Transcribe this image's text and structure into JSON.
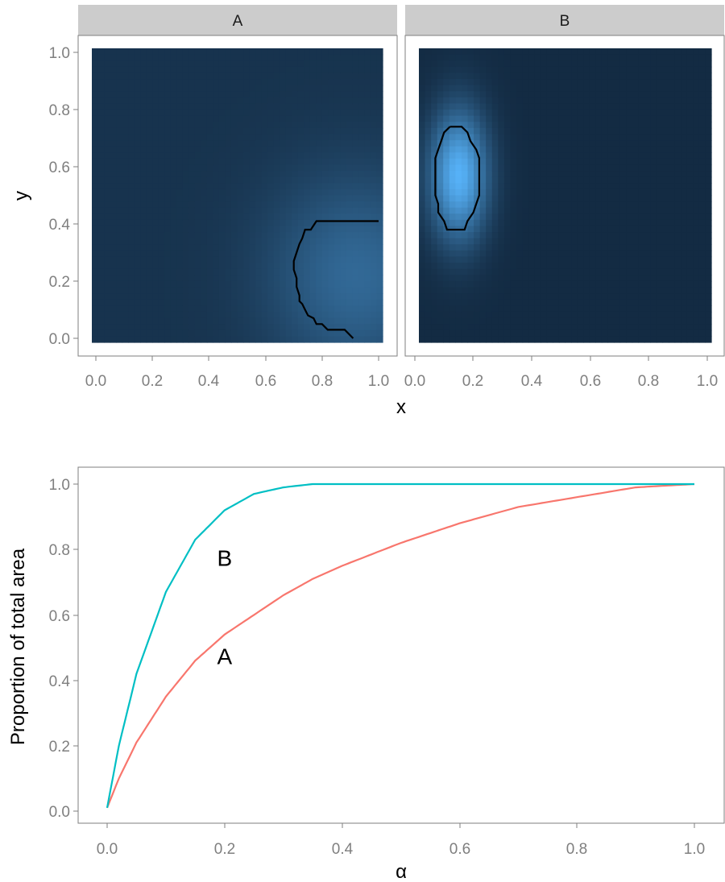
{
  "colors": {
    "heat_low": "#132b43",
    "heat_high": "#56b1f7",
    "contour": "#000000",
    "series_A": "#f8766d",
    "series_B": "#00bfc4",
    "strip_bg": "#cccccc",
    "panel_border": "#7f7f7f",
    "tick_text": "#7f7f7f"
  },
  "chart_data": [
    {
      "type": "heatmap",
      "facets": [
        "A",
        "B"
      ],
      "xlabel": "x",
      "ylabel": "y",
      "xlim": [
        0,
        1
      ],
      "ylim": [
        0,
        1
      ],
      "xticks": [
        "0.0",
        "0.2",
        "0.4",
        "0.6",
        "0.8",
        "1.0"
      ],
      "yticks": [
        "0.0",
        "0.2",
        "0.4",
        "0.6",
        "0.8",
        "1.0"
      ],
      "fields": [
        {
          "facet": "A",
          "peak": [
            0.92,
            0.22
          ],
          "spread": [
            0.22,
            0.25
          ],
          "base": 0.06,
          "peak_intensity": 0.46
        },
        {
          "facet": "B",
          "peak": [
            0.15,
            0.57
          ],
          "spread": [
            0.07,
            0.16
          ],
          "base": 0.0,
          "peak_intensity": 1.0
        }
      ],
      "contours": [
        {
          "facet": "A",
          "points": [
            [
              1.0,
              0.41
            ],
            [
              0.78,
              0.41
            ],
            [
              0.76,
              0.38
            ],
            [
              0.74,
              0.38
            ],
            [
              0.73,
              0.35
            ],
            [
              0.72,
              0.33
            ],
            [
              0.71,
              0.3
            ],
            [
              0.7,
              0.27
            ],
            [
              0.7,
              0.24
            ],
            [
              0.71,
              0.21
            ],
            [
              0.71,
              0.18
            ],
            [
              0.72,
              0.15
            ],
            [
              0.72,
              0.13
            ],
            [
              0.73,
              0.12
            ],
            [
              0.74,
              0.1
            ],
            [
              0.75,
              0.08
            ],
            [
              0.77,
              0.07
            ],
            [
              0.78,
              0.05
            ],
            [
              0.8,
              0.05
            ],
            [
              0.82,
              0.03
            ],
            [
              0.85,
              0.03
            ],
            [
              0.88,
              0.03
            ],
            [
              0.91,
              0.0
            ]
          ]
        },
        {
          "facet": "B",
          "points": [
            [
              0.12,
              0.74
            ],
            [
              0.16,
              0.74
            ],
            [
              0.18,
              0.72
            ],
            [
              0.19,
              0.69
            ],
            [
              0.21,
              0.66
            ],
            [
              0.22,
              0.63
            ],
            [
              0.22,
              0.56
            ],
            [
              0.22,
              0.5
            ],
            [
              0.21,
              0.47
            ],
            [
              0.2,
              0.44
            ],
            [
              0.18,
              0.41
            ],
            [
              0.17,
              0.38
            ],
            [
              0.14,
              0.38
            ],
            [
              0.11,
              0.38
            ],
            [
              0.1,
              0.41
            ],
            [
              0.08,
              0.44
            ],
            [
              0.08,
              0.47
            ],
            [
              0.07,
              0.5
            ],
            [
              0.07,
              0.63
            ],
            [
              0.08,
              0.66
            ],
            [
              0.09,
              0.69
            ],
            [
              0.1,
              0.72
            ],
            [
              0.12,
              0.74
            ]
          ]
        }
      ]
    },
    {
      "type": "line",
      "xlabel": "α",
      "ylabel": "Proportion of total area",
      "xlim": [
        0,
        1
      ],
      "ylim": [
        0,
        1
      ],
      "xticks": [
        "0.0",
        "0.2",
        "0.4",
        "0.6",
        "0.8",
        "1.0"
      ],
      "yticks": [
        "0.0",
        "0.2",
        "0.4",
        "0.6",
        "0.8",
        "1.0"
      ],
      "x": [
        0.0,
        0.02,
        0.05,
        0.1,
        0.15,
        0.2,
        0.25,
        0.3,
        0.35,
        0.4,
        0.5,
        0.6,
        0.7,
        0.8,
        0.9,
        1.0
      ],
      "series": [
        {
          "name": "A",
          "values": [
            0.01,
            0.1,
            0.21,
            0.35,
            0.46,
            0.54,
            0.6,
            0.66,
            0.71,
            0.75,
            0.82,
            0.88,
            0.93,
            0.96,
            0.99,
            1.0
          ]
        },
        {
          "name": "B",
          "values": [
            0.01,
            0.2,
            0.42,
            0.67,
            0.83,
            0.92,
            0.97,
            0.99,
            1.0,
            1.0,
            1.0,
            1.0,
            1.0,
            1.0,
            1.0,
            1.0
          ]
        }
      ],
      "labels": [
        {
          "text": "A",
          "x": 0.2,
          "y": 0.45
        },
        {
          "text": "B",
          "x": 0.2,
          "y": 0.75
        }
      ]
    }
  ]
}
